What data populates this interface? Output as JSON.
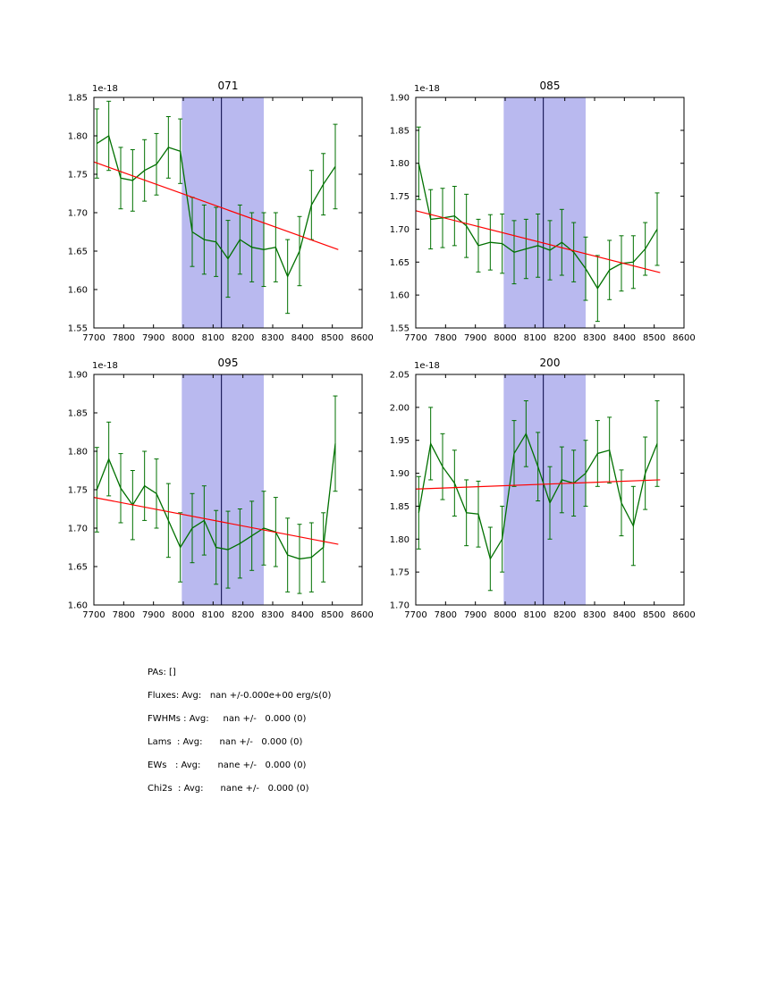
{
  "figure": {
    "stats": {
      "lines": [
        "PAs: []",
        "Fluxes: Avg:   nan +/-0.000e+00 erg/s(0)",
        "FWHMs : Avg:     nan +/-   0.000 (0)",
        "Lams  : Avg:      nan +/-   0.000 (0)",
        "EWs   : Avg:      nane +/-   0.000 (0)",
        "Chi2s  : Avg:      nane +/-   0.000 (0)"
      ]
    }
  },
  "colors": {
    "data_line": "#007000",
    "trend_line": "#ff0000",
    "band_fill": "#b9b9ef",
    "vline": "#000040",
    "axis": "#000000",
    "text": "#000000"
  },
  "chart_data": [
    {
      "type": "line",
      "title": "071",
      "offset_label": "1e-18",
      "xlabel": "",
      "ylabel": "",
      "xlim": [
        7700,
        8600
      ],
      "ylim": [
        1.55,
        1.85
      ],
      "xticks": [
        7700,
        7800,
        7900,
        8000,
        8100,
        8200,
        8300,
        8400,
        8500,
        8600
      ],
      "yticks": [
        1.55,
        1.6,
        1.65,
        1.7,
        1.75,
        1.8,
        1.85
      ],
      "band": [
        7995,
        8270
      ],
      "vline": 8128,
      "x": [
        7710,
        7750,
        7790,
        7830,
        7870,
        7910,
        7950,
        7990,
        8030,
        8070,
        8110,
        8150,
        8190,
        8230,
        8270,
        8310,
        8350,
        8390,
        8430,
        8470,
        8510
      ],
      "y": [
        1.79,
        1.8,
        1.745,
        1.742,
        1.755,
        1.763,
        1.785,
        1.78,
        1.675,
        1.665,
        1.662,
        1.64,
        1.665,
        1.655,
        1.652,
        1.655,
        1.617,
        1.65,
        1.71,
        1.737,
        1.76
      ],
      "yerr": [
        0.045,
        0.045,
        0.04,
        0.04,
        0.04,
        0.04,
        0.04,
        0.042,
        0.045,
        0.045,
        0.045,
        0.05,
        0.045,
        0.045,
        0.048,
        0.045,
        0.048,
        0.045,
        0.045,
        0.04,
        0.055
      ],
      "trend": {
        "x": [
          7700,
          8520
        ],
        "y": [
          1.766,
          1.652
        ]
      }
    },
    {
      "type": "line",
      "title": "085",
      "offset_label": "1e-18",
      "xlabel": "",
      "ylabel": "",
      "xlim": [
        7700,
        8600
      ],
      "ylim": [
        1.55,
        1.9
      ],
      "xticks": [
        7700,
        7800,
        7900,
        8000,
        8100,
        8200,
        8300,
        8400,
        8500,
        8600
      ],
      "yticks": [
        1.55,
        1.6,
        1.65,
        1.7,
        1.75,
        1.8,
        1.85,
        1.9
      ],
      "band": [
        7995,
        8270
      ],
      "vline": 8128,
      "x": [
        7710,
        7750,
        7790,
        7830,
        7870,
        7910,
        7950,
        7990,
        8030,
        8070,
        8110,
        8150,
        8190,
        8230,
        8270,
        8310,
        8350,
        8390,
        8430,
        8470,
        8510
      ],
      "y": [
        1.8,
        1.715,
        1.717,
        1.72,
        1.705,
        1.675,
        1.68,
        1.678,
        1.665,
        1.67,
        1.675,
        1.668,
        1.68,
        1.665,
        1.64,
        1.61,
        1.638,
        1.648,
        1.65,
        1.67,
        1.7
      ],
      "yerr": [
        0.055,
        0.045,
        0.045,
        0.045,
        0.048,
        0.04,
        0.042,
        0.045,
        0.048,
        0.045,
        0.048,
        0.045,
        0.05,
        0.045,
        0.048,
        0.05,
        0.045,
        0.042,
        0.04,
        0.04,
        0.055
      ],
      "trend": {
        "x": [
          7700,
          8520
        ],
        "y": [
          1.728,
          1.634
        ]
      }
    },
    {
      "type": "line",
      "title": "095",
      "offset_label": "1e-18",
      "xlabel": "",
      "ylabel": "",
      "xlim": [
        7700,
        8600
      ],
      "ylim": [
        1.6,
        1.9
      ],
      "xticks": [
        7700,
        7800,
        7900,
        8000,
        8100,
        8200,
        8300,
        8400,
        8500,
        8600
      ],
      "yticks": [
        1.6,
        1.65,
        1.7,
        1.75,
        1.8,
        1.85,
        1.9
      ],
      "band": [
        7995,
        8270
      ],
      "vline": 8128,
      "x": [
        7710,
        7750,
        7790,
        7830,
        7870,
        7910,
        7950,
        7990,
        8030,
        8070,
        8110,
        8150,
        8190,
        8230,
        8270,
        8310,
        8350,
        8390,
        8430,
        8470,
        8510
      ],
      "y": [
        1.75,
        1.79,
        1.752,
        1.73,
        1.755,
        1.745,
        1.71,
        1.675,
        1.7,
        1.71,
        1.675,
        1.672,
        1.68,
        1.69,
        1.7,
        1.695,
        1.665,
        1.66,
        1.662,
        1.675,
        1.81
      ],
      "yerr": [
        0.055,
        0.048,
        0.045,
        0.045,
        0.045,
        0.045,
        0.048,
        0.045,
        0.045,
        0.045,
        0.048,
        0.05,
        0.045,
        0.045,
        0.048,
        0.045,
        0.048,
        0.045,
        0.045,
        0.045,
        0.062
      ],
      "trend": {
        "x": [
          7700,
          8520
        ],
        "y": [
          1.74,
          1.679
        ]
      }
    },
    {
      "type": "line",
      "title": "200",
      "offset_label": "1e-18",
      "xlabel": "",
      "ylabel": "",
      "xlim": [
        7700,
        8600
      ],
      "ylim": [
        1.7,
        2.05
      ],
      "xticks": [
        7700,
        7800,
        7900,
        8000,
        8100,
        8200,
        8300,
        8400,
        8500,
        8600
      ],
      "yticks": [
        1.7,
        1.75,
        1.8,
        1.85,
        1.9,
        1.95,
        2.0,
        2.05
      ],
      "band": [
        7995,
        8270
      ],
      "vline": 8128,
      "x": [
        7710,
        7750,
        7790,
        7830,
        7870,
        7910,
        7950,
        7990,
        8030,
        8070,
        8110,
        8150,
        8190,
        8230,
        8270,
        8310,
        8350,
        8390,
        8430,
        8470,
        8510
      ],
      "y": [
        1.84,
        1.945,
        1.91,
        1.885,
        1.84,
        1.838,
        1.77,
        1.8,
        1.93,
        1.96,
        1.91,
        1.855,
        1.89,
        1.885,
        1.9,
        1.93,
        1.935,
        1.855,
        1.82,
        1.9,
        1.945
      ],
      "yerr": [
        0.055,
        0.055,
        0.05,
        0.05,
        0.05,
        0.05,
        0.048,
        0.05,
        0.05,
        0.05,
        0.052,
        0.055,
        0.05,
        0.05,
        0.05,
        0.05,
        0.05,
        0.05,
        0.06,
        0.055,
        0.065
      ],
      "trend": {
        "x": [
          7700,
          8520
        ],
        "y": [
          1.876,
          1.89
        ]
      }
    }
  ]
}
